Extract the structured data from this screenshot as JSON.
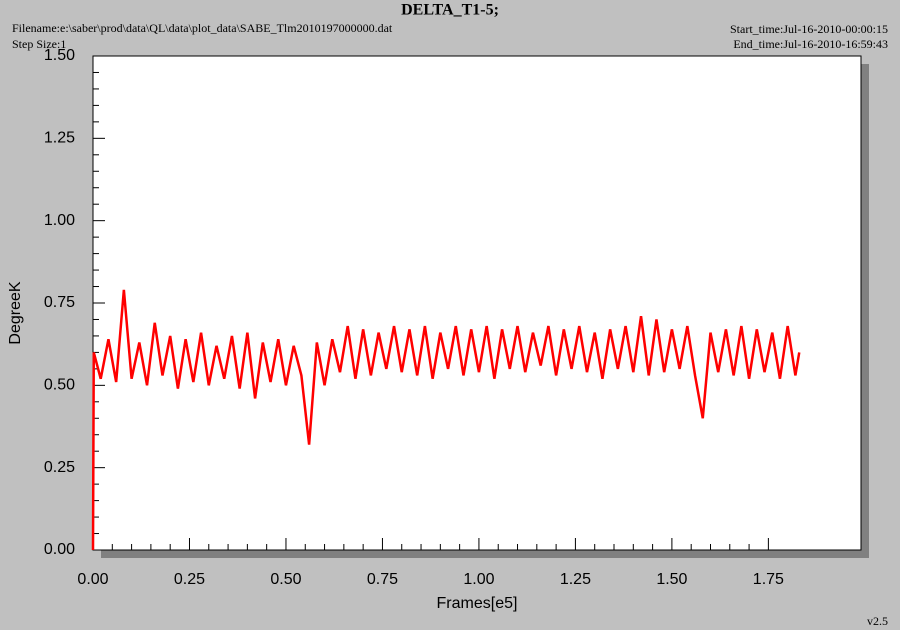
{
  "chart_data": {
    "type": "line",
    "title": "DELTA_T1-5;",
    "filename": "Filename:e:\\saber\\prod\\data\\QL\\data\\plot_data\\SABE_Tlm2010197000000.dat",
    "step_size": "Step Size:1",
    "start_time": "Start_time:Jul-16-2010-00:00:15",
    "end_time": "End_time:Jul-16-2010-16:59:43",
    "version": "v2.5",
    "x_label": "Frames[e5]",
    "y_label": "DegreeK",
    "xlim": [
      0,
      1.99
    ],
    "ylim": [
      0,
      1.5
    ],
    "xticks": [
      {
        "value": 0,
        "label": "0.00"
      },
      {
        "value": 0.25,
        "label": "0.25"
      },
      {
        "value": 0.5,
        "label": "0.50"
      },
      {
        "value": 0.75,
        "label": "0.75"
      },
      {
        "value": 1,
        "label": "1.00"
      },
      {
        "value": 1.25,
        "label": "1.25"
      },
      {
        "value": 1.5,
        "label": "1.50"
      },
      {
        "value": 1.75,
        "label": "1.75"
      }
    ],
    "yticks": [
      {
        "value": 0,
        "label": "0.00"
      },
      {
        "value": 0.25,
        "label": "0.25"
      },
      {
        "value": 0.5,
        "label": "0.50"
      },
      {
        "value": 0.75,
        "label": "0.75"
      },
      {
        "value": 1,
        "label": "1.00"
      },
      {
        "value": 1.25,
        "label": "1.25"
      },
      {
        "value": 1.5,
        "label": "1.50"
      }
    ],
    "grid": false,
    "x": [
      0,
      0.002,
      0.02,
      0.04,
      0.06,
      0.08,
      0.1,
      0.12,
      0.14,
      0.16,
      0.18,
      0.2,
      0.22,
      0.24,
      0.26,
      0.28,
      0.3,
      0.32,
      0.34,
      0.36,
      0.38,
      0.4,
      0.42,
      0.44,
      0.46,
      0.48,
      0.5,
      0.52,
      0.54,
      0.56,
      0.58,
      0.6,
      0.62,
      0.64,
      0.66,
      0.68,
      0.7,
      0.72,
      0.74,
      0.76,
      0.78,
      0.8,
      0.82,
      0.84,
      0.86,
      0.88,
      0.9,
      0.92,
      0.94,
      0.96,
      0.98,
      1.0,
      1.02,
      1.04,
      1.06,
      1.08,
      1.1,
      1.12,
      1.14,
      1.16,
      1.18,
      1.2,
      1.22,
      1.24,
      1.26,
      1.28,
      1.3,
      1.32,
      1.34,
      1.36,
      1.38,
      1.4,
      1.42,
      1.44,
      1.46,
      1.48,
      1.5,
      1.52,
      1.54,
      1.56,
      1.58,
      1.6,
      1.62,
      1.64,
      1.66,
      1.68,
      1.7,
      1.72,
      1.74,
      1.76,
      1.78,
      1.8,
      1.82,
      1.83
    ],
    "series": [
      {
        "color": "#ff0000",
        "values": [
          0.0,
          0.6,
          0.52,
          0.64,
          0.51,
          0.79,
          0.52,
          0.63,
          0.5,
          0.69,
          0.53,
          0.65,
          0.49,
          0.64,
          0.51,
          0.66,
          0.5,
          0.62,
          0.52,
          0.65,
          0.49,
          0.66,
          0.46,
          0.63,
          0.51,
          0.64,
          0.5,
          0.62,
          0.53,
          0.32,
          0.63,
          0.5,
          0.64,
          0.54,
          0.68,
          0.52,
          0.67,
          0.53,
          0.66,
          0.55,
          0.68,
          0.54,
          0.67,
          0.53,
          0.68,
          0.52,
          0.66,
          0.55,
          0.68,
          0.53,
          0.67,
          0.54,
          0.68,
          0.52,
          0.67,
          0.55,
          0.68,
          0.54,
          0.66,
          0.56,
          0.68,
          0.53,
          0.67,
          0.55,
          0.68,
          0.54,
          0.66,
          0.52,
          0.67,
          0.55,
          0.68,
          0.54,
          0.71,
          0.53,
          0.7,
          0.54,
          0.67,
          0.55,
          0.68,
          0.53,
          0.4,
          0.66,
          0.54,
          0.67,
          0.53,
          0.68,
          0.52,
          0.67,
          0.54,
          0.66,
          0.52,
          0.68,
          0.53,
          0.6
        ]
      }
    ]
  }
}
